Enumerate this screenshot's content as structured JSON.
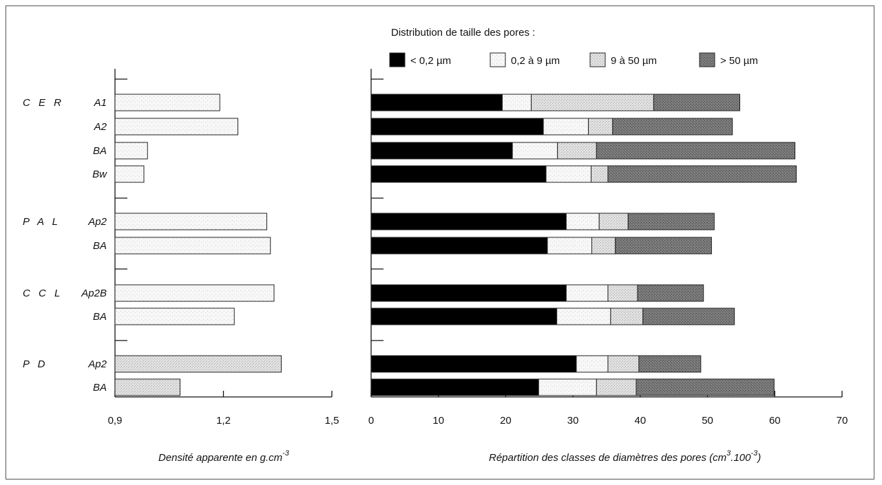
{
  "chart_data": [
    {
      "type": "bar",
      "orientation": "horizontal",
      "xlabel": "Densité apparente en g.cm",
      "xlabel_sup": "-3",
      "x_ticks": [
        "0,9",
        "1,2",
        "1,5"
      ],
      "xlim": [
        0.9,
        1.5
      ],
      "groups": [
        {
          "name": "C E R",
          "horizons": [
            "A1",
            "A2",
            "BA",
            "Bw"
          ],
          "values": [
            1.19,
            1.24,
            0.99,
            0.98
          ]
        },
        {
          "name": "P A L",
          "horizons": [
            "Ap2",
            "BA"
          ],
          "values": [
            1.32,
            1.33
          ]
        },
        {
          "name": "C C L",
          "horizons": [
            "Ap2B",
            "BA"
          ],
          "values": [
            1.34,
            1.23
          ]
        },
        {
          "name": "P D",
          "horizons": [
            "Ap2",
            "BA"
          ],
          "values": [
            1.36,
            1.08
          ]
        }
      ]
    },
    {
      "type": "bar",
      "orientation": "horizontal",
      "stacked": true,
      "title": "Distribution de taille des pores :",
      "xlabel": "Répartition des classes de diamètres des pores  (cm",
      "xlabel_sup1": "3",
      "xlabel_mid": ".100",
      "xlabel_sup2": "-3",
      "xlabel_end": ")",
      "x_ticks": [
        "0",
        "10",
        "20",
        "30",
        "40",
        "50",
        "60",
        "70"
      ],
      "xlim": [
        0,
        70
      ],
      "series": [
        {
          "name": "< 0,2 µm",
          "color": "#000000",
          "pattern": "solid"
        },
        {
          "name": "0,2 à  9 µm",
          "color": "#f4f4f4",
          "pattern": "light"
        },
        {
          "name": "9 à  50 µm",
          "color": "#dcdcdc",
          "pattern": "medium"
        },
        {
          "name": "> 50 µm",
          "color": "#6e6e6e",
          "pattern": "dark"
        }
      ],
      "rows": [
        {
          "group": "C E R",
          "horizon": "A1",
          "values": [
            19.5,
            4.3,
            18.2,
            12.8
          ]
        },
        {
          "group": "C E R",
          "horizon": "A2",
          "values": [
            25.6,
            6.7,
            3.6,
            17.8
          ]
        },
        {
          "group": "C E R",
          "horizon": "BA",
          "values": [
            21.0,
            6.7,
            5.8,
            29.5
          ]
        },
        {
          "group": "C E R",
          "horizon": "Bw",
          "values": [
            26.0,
            6.7,
            2.5,
            28.0
          ]
        },
        {
          "group": "P A L",
          "horizon": "Ap2",
          "values": [
            29.0,
            4.9,
            4.3,
            12.8
          ]
        },
        {
          "group": "P A L",
          "horizon": "BA",
          "values": [
            26.2,
            6.6,
            3.5,
            14.3
          ]
        },
        {
          "group": "C C L",
          "horizon": "Ap2B",
          "values": [
            29.0,
            6.2,
            4.4,
            9.8
          ]
        },
        {
          "group": "C C L",
          "horizon": "BA",
          "values": [
            27.6,
            8.0,
            4.8,
            13.6
          ]
        },
        {
          "group": "P D",
          "horizon": "Ap2",
          "values": [
            30.5,
            4.7,
            4.6,
            9.2
          ]
        },
        {
          "group": "P D",
          "horizon": "BA",
          "values": [
            24.9,
            8.6,
            5.9,
            20.5
          ]
        }
      ]
    }
  ]
}
